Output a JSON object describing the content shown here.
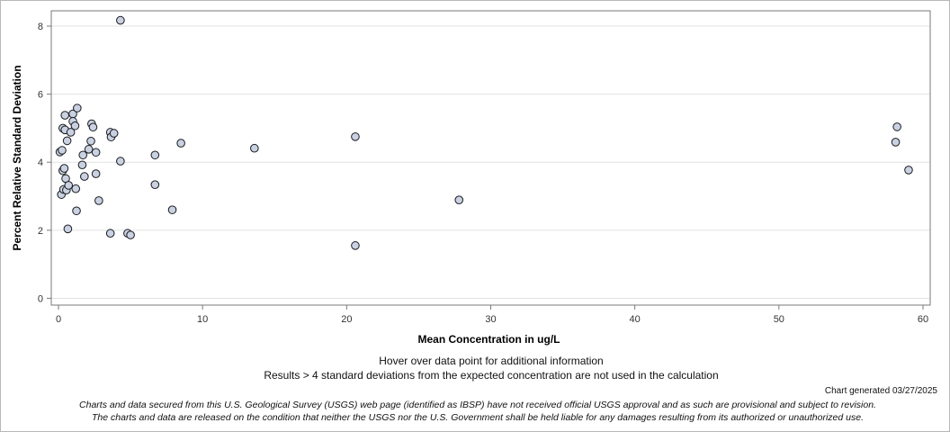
{
  "chart_data": {
    "type": "scatter",
    "xlabel": "Mean Concentration in ug/L",
    "ylabel": "Percent Relative Standard Deviation",
    "xlim": [
      -0.5,
      60.5
    ],
    "ylim": [
      -0.2,
      8.45
    ],
    "xticks": [
      0,
      10,
      20,
      30,
      40,
      50,
      60
    ],
    "yticks": [
      0,
      2,
      4,
      6,
      8
    ],
    "grid": "horizontal",
    "colors": {
      "marker_fill": "#c8d2e4",
      "marker_edge": "#1a1a1a",
      "grid": "#e2e2e2",
      "axis": "#7a7a7a"
    },
    "points": [
      {
        "x": 0.1,
        "y": 4.3
      },
      {
        "x": 0.2,
        "y": 3.05
      },
      {
        "x": 0.25,
        "y": 4.35
      },
      {
        "x": 0.3,
        "y": 3.75
      },
      {
        "x": 0.3,
        "y": 5.0
      },
      {
        "x": 0.35,
        "y": 3.2
      },
      {
        "x": 0.4,
        "y": 3.82
      },
      {
        "x": 0.45,
        "y": 4.95
      },
      {
        "x": 0.45,
        "y": 5.38
      },
      {
        "x": 0.5,
        "y": 3.52
      },
      {
        "x": 0.55,
        "y": 3.18
      },
      {
        "x": 0.6,
        "y": 4.63
      },
      {
        "x": 0.65,
        "y": 2.04
      },
      {
        "x": 0.7,
        "y": 3.32
      },
      {
        "x": 0.85,
        "y": 4.88
      },
      {
        "x": 1.0,
        "y": 5.42
      },
      {
        "x": 1.0,
        "y": 5.2
      },
      {
        "x": 1.15,
        "y": 5.07
      },
      {
        "x": 1.2,
        "y": 3.22
      },
      {
        "x": 1.3,
        "y": 5.59
      },
      {
        "x": 1.25,
        "y": 2.57
      },
      {
        "x": 1.65,
        "y": 3.92
      },
      {
        "x": 1.7,
        "y": 4.21
      },
      {
        "x": 1.8,
        "y": 3.58
      },
      {
        "x": 2.1,
        "y": 4.38
      },
      {
        "x": 2.25,
        "y": 4.62
      },
      {
        "x": 2.3,
        "y": 5.13
      },
      {
        "x": 2.4,
        "y": 5.03
      },
      {
        "x": 2.6,
        "y": 3.66
      },
      {
        "x": 2.6,
        "y": 4.29
      },
      {
        "x": 2.8,
        "y": 2.87
      },
      {
        "x": 3.6,
        "y": 4.88
      },
      {
        "x": 3.6,
        "y": 1.91
      },
      {
        "x": 3.65,
        "y": 4.74
      },
      {
        "x": 3.85,
        "y": 4.85
      },
      {
        "x": 4.3,
        "y": 4.03
      },
      {
        "x": 4.3,
        "y": 8.17
      },
      {
        "x": 4.8,
        "y": 1.91
      },
      {
        "x": 5.0,
        "y": 1.86
      },
      {
        "x": 6.7,
        "y": 4.21
      },
      {
        "x": 6.7,
        "y": 3.34
      },
      {
        "x": 7.9,
        "y": 2.6
      },
      {
        "x": 8.5,
        "y": 4.56
      },
      {
        "x": 13.6,
        "y": 4.41
      },
      {
        "x": 20.6,
        "y": 4.75
      },
      {
        "x": 20.6,
        "y": 1.55
      },
      {
        "x": 27.8,
        "y": 2.89
      },
      {
        "x": 58.1,
        "y": 4.59
      },
      {
        "x": 58.2,
        "y": 5.04
      },
      {
        "x": 59.0,
        "y": 3.77
      }
    ]
  },
  "notes": {
    "hover": "Hover over data point for additional information",
    "exclusion": "Results > 4 standard deviations from the expected concentration are not used in the calculation",
    "generated": "Chart generated 03/27/2025",
    "disclaimer_line1": "Charts and data secured from this U.S. Geological Survey (USGS) web page (identified as IBSP) have not received official USGS approval and as such are provisional and subject to revision.",
    "disclaimer_line2": "The charts and data are released on the condition that neither the USGS nor the U.S. Government shall be held liable for any damages resulting from its authorized or unauthorized use."
  }
}
